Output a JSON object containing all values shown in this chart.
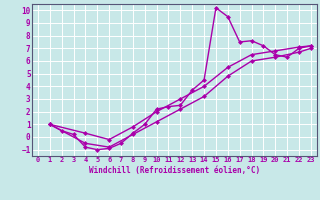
{
  "bg_color": "#c8e8e8",
  "grid_color": "#ffffff",
  "line_color": "#aa00aa",
  "marker": "D",
  "marker_size": 2,
  "line_width": 1.0,
  "xlabel": "Windchill (Refroidissement éolien,°C)",
  "xlim": [
    -0.5,
    23.5
  ],
  "ylim": [
    -1.5,
    10.5
  ],
  "xticks": [
    0,
    1,
    2,
    3,
    4,
    5,
    6,
    7,
    8,
    9,
    10,
    11,
    12,
    13,
    14,
    15,
    16,
    17,
    18,
    19,
    20,
    21,
    22,
    23
  ],
  "yticks": [
    -1,
    0,
    1,
    2,
    3,
    4,
    5,
    6,
    7,
    8,
    9,
    10
  ],
  "line1_x": [
    1,
    2,
    3,
    4,
    5,
    6,
    7,
    8,
    9,
    10,
    11,
    12,
    13,
    14,
    15,
    16,
    17,
    18,
    19,
    20,
    21,
    22,
    23
  ],
  "line1_y": [
    1.0,
    0.5,
    0.2,
    -0.8,
    -1.0,
    -0.9,
    -0.5,
    0.3,
    1.0,
    2.2,
    2.4,
    2.5,
    3.7,
    4.5,
    10.2,
    9.5,
    7.5,
    7.6,
    7.2,
    6.5,
    6.3,
    7.0,
    7.2
  ],
  "line2_x": [
    1,
    4,
    6,
    8,
    10,
    12,
    14,
    16,
    18,
    20,
    22,
    23
  ],
  "line2_y": [
    1.0,
    0.3,
    -0.2,
    0.8,
    2.0,
    3.0,
    4.0,
    5.5,
    6.5,
    6.8,
    7.1,
    7.2
  ],
  "line3_x": [
    1,
    4,
    6,
    8,
    10,
    12,
    14,
    16,
    18,
    20,
    22,
    23
  ],
  "line3_y": [
    1.0,
    -0.5,
    -0.8,
    0.2,
    1.2,
    2.2,
    3.2,
    4.8,
    6.0,
    6.3,
    6.7,
    7.0
  ]
}
